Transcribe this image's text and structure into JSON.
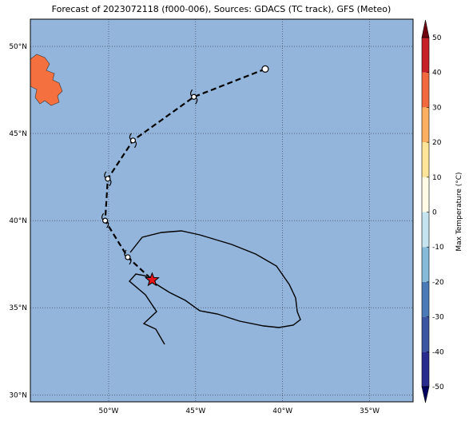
{
  "chart_data": {
    "type": "track-map",
    "title": "Forecast of 2023072118 (f000-006), Sources: GDACS (TC track), GFS (Meteo)",
    "ocean_color": "#93b5db",
    "land_color": "#f4703f",
    "xlim": [
      -54.5,
      -32.5
    ],
    "ylim": [
      29.6,
      51.56
    ],
    "xticks": [
      {
        "value": -50,
        "label": "50°W"
      },
      {
        "value": -45,
        "label": "45°W"
      },
      {
        "value": -40,
        "label": "40°W"
      },
      {
        "value": -35,
        "label": "35°W"
      }
    ],
    "yticks": [
      {
        "value": 30,
        "label": "30°N"
      },
      {
        "value": 35,
        "label": "35°N"
      },
      {
        "value": 40,
        "label": "40°N"
      },
      {
        "value": 45,
        "label": "45°N"
      },
      {
        "value": 50,
        "label": "50°N"
      }
    ],
    "grid": true,
    "track": {
      "x": [
        -41.0,
        -45.1,
        -48.6,
        -50.05,
        -50.2,
        -48.9
      ],
      "y": [
        48.7,
        47.1,
        44.6,
        42.4,
        40.0,
        37.9
      ],
      "color": "#000000"
    },
    "storm_position": {
      "x": -47.5,
      "y": 36.6,
      "color": "#e8141c"
    },
    "colorbar": {
      "label": "Max Temperature (°C)",
      "ticks": [
        -50,
        -40,
        -30,
        -20,
        -10,
        0,
        10,
        20,
        30,
        40,
        50
      ],
      "colors": [
        "#2a2b8e",
        "#3b55a3",
        "#4a7bb7",
        "#86bad9",
        "#c6e4ef",
        "#fffbe6",
        "#fee59a",
        "#fdb061",
        "#f2693f",
        "#c62127",
        "#99001f"
      ],
      "extend_colors": [
        "#000060",
        "#700010"
      ]
    }
  }
}
